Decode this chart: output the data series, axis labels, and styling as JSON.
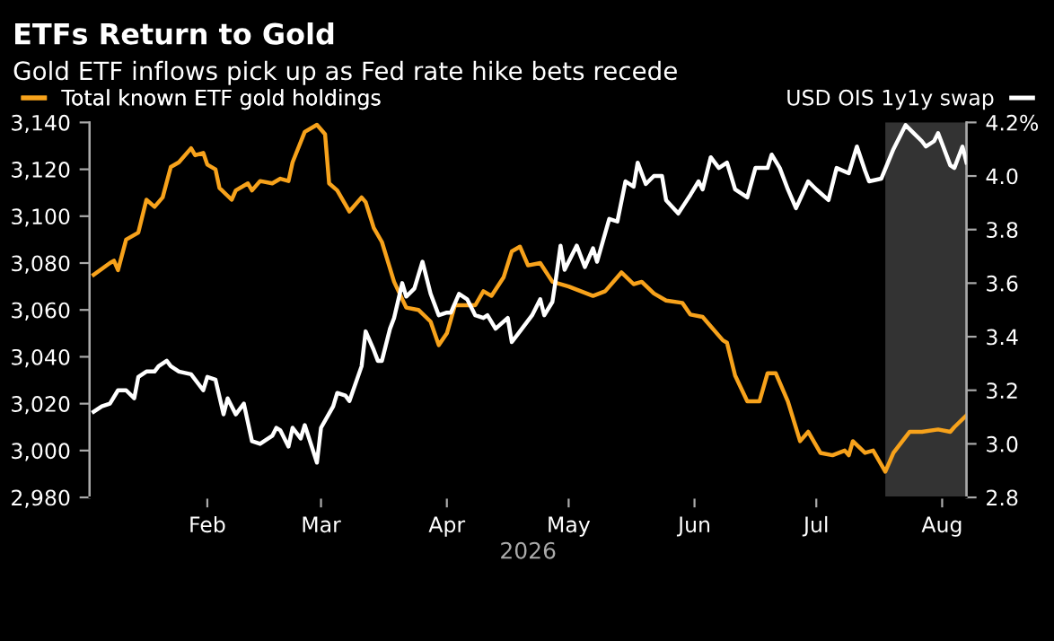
{
  "chart_data": {
    "type": "line",
    "title": "ETFs Return to Gold",
    "subtitle": "Gold ETF inflows pick up as Fed rate hike bets recede",
    "xlabel": "2026",
    "legend": "top",
    "xlim": [
      "2026-01-03",
      "2026-08-07"
    ],
    "xticks": [
      {
        "value": "2026-02-01",
        "label": "Feb"
      },
      {
        "value": "2026-03-01",
        "label": "Mar"
      },
      {
        "value": "2026-04-01",
        "label": "Apr"
      },
      {
        "value": "2026-05-01",
        "label": "May"
      },
      {
        "value": "2026-06-01",
        "label": "Jun"
      },
      {
        "value": "2026-07-01",
        "label": "Jul"
      },
      {
        "value": "2026-08-01",
        "label": "Aug"
      }
    ],
    "ylim": [
      2980,
      3140
    ],
    "yticks": [
      {
        "value": 2980,
        "label": "2,980"
      },
      {
        "value": 3000,
        "label": "3,000"
      },
      {
        "value": 3020,
        "label": "3,020"
      },
      {
        "value": 3040,
        "label": "3,040"
      },
      {
        "value": 3060,
        "label": "3,060"
      },
      {
        "value": 3080,
        "label": "3,080"
      },
      {
        "value": 3100,
        "label": "3,100"
      },
      {
        "value": 3120,
        "label": "3,120"
      },
      {
        "value": 3140,
        "label": "3,140"
      }
    ],
    "y2lim": [
      2.8,
      4.2
    ],
    "y2ticks": [
      2.8,
      {
        "value": 3.0,
        "label": "3.0"
      },
      3.2,
      3.4,
      3.6,
      3.8,
      {
        "value": 4.0,
        "label": "4.0"
      },
      {
        "value": 4.2,
        "label": "4.2%"
      }
    ],
    "bands": [
      {
        "axis": "x",
        "from": "2026-07-18",
        "to": "2026-08-07",
        "color": "#333333"
      }
    ],
    "grid": false,
    "series": [
      {
        "name": "Total known ETF gold holdings",
        "color": "#f7a21b",
        "x": [
          "2026-01-04",
          "2026-01-08",
          "2026-01-09",
          "2026-01-10",
          "2026-01-12",
          "2026-01-15",
          "2026-01-17",
          "2026-01-19",
          "2026-01-21",
          "2026-01-23",
          "2026-01-25",
          "2026-01-28",
          "2026-01-29",
          "2026-01-31",
          "2026-02-01",
          "2026-02-03",
          "2026-02-04",
          "2026-02-07",
          "2026-02-08",
          "2026-02-11",
          "2026-02-12",
          "2026-02-14",
          "2026-02-17",
          "2026-02-19",
          "2026-02-21",
          "2026-02-22",
          "2026-02-25",
          "2026-02-28",
          "2026-03-02",
          "2026-03-03",
          "2026-03-05",
          "2026-03-08",
          "2026-03-11",
          "2026-03-12",
          "2026-03-14",
          "2026-03-16",
          "2026-03-19",
          "2026-03-22",
          "2026-03-25",
          "2026-03-28",
          "2026-03-30",
          "2026-04-01",
          "2026-04-03",
          "2026-04-08",
          "2026-04-10",
          "2026-04-12",
          "2026-04-15",
          "2026-04-17",
          "2026-04-19",
          "2026-04-21",
          "2026-04-24",
          "2026-04-27",
          "2026-05-01",
          "2026-05-04",
          "2026-05-07",
          "2026-05-10",
          "2026-05-14",
          "2026-05-17",
          "2026-05-19",
          "2026-05-22",
          "2026-05-25",
          "2026-05-29",
          "2026-05-31",
          "2026-06-03",
          "2026-06-05",
          "2026-06-08",
          "2026-06-09",
          "2026-06-11",
          "2026-06-14",
          "2026-06-17",
          "2026-06-19",
          "2026-06-21",
          "2026-06-24",
          "2026-06-27",
          "2026-06-29",
          "2026-07-02",
          "2026-07-05",
          "2026-07-08",
          "2026-07-09",
          "2026-07-10",
          "2026-07-13",
          "2026-07-15",
          "2026-07-18",
          "2026-07-20",
          "2026-07-24",
          "2026-07-27",
          "2026-07-31",
          "2026-08-03",
          "2026-08-04",
          "2026-08-07"
        ],
        "values": [
          3075,
          3080,
          3081,
          3077,
          3090,
          3093,
          3107,
          3104,
          3108,
          3121,
          3123,
          3129,
          3126,
          3127,
          3122,
          3120,
          3112,
          3107,
          3111,
          3114,
          3111,
          3115,
          3114,
          3116,
          3115,
          3123,
          3136,
          3139,
          3135,
          3114,
          3111,
          3102,
          3108,
          3106,
          3095,
          3089,
          3072,
          3061,
          3060,
          3055,
          3045,
          3050,
          3062,
          3062,
          3068,
          3066,
          3074,
          3085,
          3087,
          3079,
          3080,
          3072,
          3070,
          3068,
          3066,
          3068,
          3076,
          3071,
          3072,
          3067,
          3064,
          3063,
          3058,
          3057,
          3053,
          3047,
          3046,
          3032,
          3021,
          3021,
          3033,
          3033,
          3021,
          3004,
          3008,
          2999,
          2998,
          3000,
          2998,
          3004,
          2999,
          3000,
          2991,
          2999,
          3008,
          3008,
          3009,
          3008,
          3010,
          3015
        ]
      },
      {
        "name": "USD OIS 1y1y swap",
        "color": "#ffffff",
        "axis": "y2",
        "x": [
          "2026-01-04",
          "2026-01-06",
          "2026-01-08",
          "2026-01-10",
          "2026-01-12",
          "2026-01-14",
          "2026-01-15",
          "2026-01-17",
          "2026-01-19",
          "2026-01-20",
          "2026-01-22",
          "2026-01-23",
          "2026-01-25",
          "2026-01-28",
          "2026-01-31",
          "2026-02-01",
          "2026-02-03",
          "2026-02-05",
          "2026-02-06",
          "2026-02-08",
          "2026-02-10",
          "2026-02-12",
          "2026-02-14",
          "2026-02-17",
          "2026-02-18",
          "2026-02-19",
          "2026-02-21",
          "2026-02-22",
          "2026-02-24",
          "2026-02-25",
          "2026-02-28",
          "2026-03-01",
          "2026-03-04",
          "2026-03-05",
          "2026-03-07",
          "2026-03-08",
          "2026-03-11",
          "2026-03-12",
          "2026-03-14",
          "2026-03-15",
          "2026-03-16",
          "2026-03-18",
          "2026-03-19",
          "2026-03-21",
          "2026-03-22",
          "2026-03-24",
          "2026-03-26",
          "2026-03-28",
          "2026-03-30",
          "2026-04-01",
          "2026-04-02",
          "2026-04-04",
          "2026-04-06",
          "2026-04-08",
          "2026-04-10",
          "2026-04-11",
          "2026-04-13",
          "2026-04-16",
          "2026-04-17",
          "2026-04-19",
          "2026-04-22",
          "2026-04-24",
          "2026-04-25",
          "2026-04-27",
          "2026-04-28",
          "2026-04-29",
          "2026-04-30",
          "2026-05-03",
          "2026-05-05",
          "2026-05-07",
          "2026-05-08",
          "2026-05-11",
          "2026-05-13",
          "2026-05-15",
          "2026-05-17",
          "2026-05-18",
          "2026-05-20",
          "2026-05-22",
          "2026-05-24",
          "2026-05-25",
          "2026-05-28",
          "2026-05-31",
          "2026-06-02",
          "2026-06-03",
          "2026-06-05",
          "2026-06-07",
          "2026-06-09",
          "2026-06-11",
          "2026-06-14",
          "2026-06-16",
          "2026-06-19",
          "2026-06-20",
          "2026-06-22",
          "2026-06-24",
          "2026-06-26",
          "2026-06-29",
          "2026-07-01",
          "2026-07-04",
          "2026-07-06",
          "2026-07-09",
          "2026-07-11",
          "2026-07-13",
          "2026-07-14",
          "2026-07-17",
          "2026-07-20",
          "2026-07-23",
          "2026-07-25",
          "2026-07-27",
          "2026-07-28",
          "2026-07-30",
          "2026-07-31",
          "2026-08-03",
          "2026-08-04",
          "2026-08-06",
          "2026-08-07"
        ],
        "values": [
          3.12,
          3.14,
          3.15,
          3.2,
          3.2,
          3.17,
          3.25,
          3.27,
          3.27,
          3.29,
          3.31,
          3.29,
          3.27,
          3.26,
          3.2,
          3.25,
          3.24,
          3.11,
          3.17,
          3.11,
          3.15,
          3.01,
          3.0,
          3.03,
          3.06,
          3.05,
          2.99,
          3.06,
          3.02,
          3.07,
          2.93,
          3.06,
          3.14,
          3.19,
          3.18,
          3.16,
          3.29,
          3.42,
          3.35,
          3.31,
          3.31,
          3.43,
          3.47,
          3.6,
          3.55,
          3.58,
          3.68,
          3.56,
          3.48,
          3.49,
          3.49,
          3.56,
          3.54,
          3.48,
          3.47,
          3.48,
          3.43,
          3.47,
          3.38,
          3.42,
          3.48,
          3.54,
          3.48,
          3.53,
          3.63,
          3.74,
          3.65,
          3.74,
          3.66,
          3.73,
          3.68,
          3.84,
          3.83,
          3.98,
          3.96,
          4.05,
          3.97,
          4.0,
          4.0,
          3.91,
          3.86,
          3.93,
          3.98,
          3.95,
          4.07,
          4.03,
          4.05,
          3.95,
          3.92,
          4.03,
          4.03,
          4.08,
          4.03,
          3.95,
          3.88,
          3.98,
          3.95,
          3.91,
          4.03,
          4.01,
          4.11,
          4.02,
          3.98,
          3.99,
          4.1,
          4.19,
          4.16,
          4.13,
          4.11,
          4.13,
          4.16,
          4.04,
          4.03,
          4.11,
          4.05
        ]
      }
    ]
  }
}
